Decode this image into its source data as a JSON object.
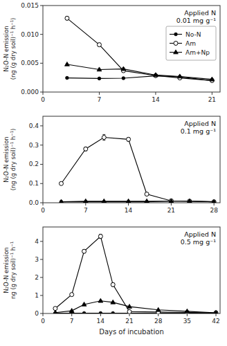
{
  "chart_data": [
    {
      "type": "line",
      "title": "Applied N\n0.01 mg g⁻¹",
      "ylabel": "N₂O-N emission\n(ng (g dry soil)⁻¹ h⁻¹)",
      "xlim": [
        0,
        22
      ],
      "xticks": [
        0,
        7,
        14,
        21
      ],
      "ylim": [
        0.0,
        0.015
      ],
      "yticks": [
        {
          "value": 0.0,
          "label": "0.000"
        },
        {
          "value": 0.005,
          "label": "0.005"
        },
        {
          "value": 0.01,
          "label": "0.010"
        },
        {
          "value": 0.015,
          "label": "0.015"
        }
      ],
      "legend": "upper right",
      "x": [
        3,
        7,
        10,
        14,
        17,
        21
      ],
      "series": [
        {
          "name": "No-N",
          "color": "black",
          "marker": "circle",
          "line_style": "solid",
          "values": [
            0.00245,
            0.00235,
            0.0024,
            0.0028,
            0.00265,
            0.00195
          ],
          "yerr": [
            0.0001,
            0.0001,
            0.0001,
            0.0001,
            0.0001,
            0.0001
          ]
        },
        {
          "name": "Am",
          "color": "black",
          "marker": "open-circle",
          "line_style": "solid",
          "values": [
            0.0128,
            0.0082,
            0.0037,
            0.00285,
            0.00245,
            0.002
          ],
          "yerr": [
            0.0003,
            0.0003,
            0.0002,
            0.0001,
            0.0001,
            0.0001
          ]
        },
        {
          "name": "Am+Np",
          "color": "black",
          "marker": "triangle",
          "line_style": "solid",
          "values": [
            0.0048,
            0.0039,
            0.004,
            0.00295,
            0.0027,
            0.0022
          ],
          "yerr": [
            0.0001,
            0.0001,
            0.0002,
            0.0001,
            0.0001,
            0.0001
          ]
        }
      ]
    },
    {
      "type": "line",
      "title": "Applied N\n0.1 mg g⁻¹",
      "ylabel": "N₂O-N emission\n(ng (g dry soil)⁻¹ h⁻¹)",
      "xlim": [
        0,
        29
      ],
      "xticks": [
        0,
        7,
        14,
        21,
        28
      ],
      "ylim": [
        0.0,
        0.45
      ],
      "yticks": [
        {
          "value": 0.0,
          "label": "0.0"
        },
        {
          "value": 0.1,
          "label": "0.1"
        },
        {
          "value": 0.2,
          "label": "0.2"
        },
        {
          "value": 0.3,
          "label": "0.3"
        },
        {
          "value": 0.4,
          "label": "0.4"
        }
      ],
      "x": [
        3,
        7,
        10,
        14,
        17,
        21,
        24,
        28
      ],
      "series": [
        {
          "color": "black",
          "marker": "circle",
          "line_style": "solid",
          "values": [
            0.005,
            0.005,
            0.005,
            0.005,
            0.005,
            0.008,
            0.008,
            0.005
          ],
          "yerr": [
            0.001,
            0.001,
            0.001,
            0.001,
            0.001,
            0.001,
            0.001,
            0.001
          ]
        },
        {
          "color": "black",
          "marker": "open-circle",
          "line_style": "solid",
          "values": [
            0.1,
            0.28,
            0.34,
            0.33,
            0.045,
            0.01,
            0.008,
            0.005
          ],
          "yerr": [
            0.005,
            0.01,
            0.015,
            0.01,
            0.005,
            0.002,
            0.001,
            0.001
          ]
        },
        {
          "color": "black",
          "marker": "triangle",
          "line_style": "solid",
          "values": [
            0.005,
            0.008,
            0.008,
            0.008,
            0.008,
            0.008,
            0.008,
            0.005
          ],
          "yerr": [
            0.001,
            0.001,
            0.001,
            0.001,
            0.001,
            0.001,
            0.001,
            0.001
          ]
        }
      ]
    },
    {
      "type": "line",
      "title": "Applied N\n0.5 mg g⁻¹",
      "ylabel": "N₂O-N emission\nng (g dry soil)⁻¹ h⁻¹",
      "xlabel": "Days of incubation",
      "xlim": [
        0,
        43
      ],
      "xticks": [
        0,
        7,
        14,
        21,
        28,
        35,
        42
      ],
      "ylim": [
        0,
        4.8
      ],
      "yticks": [
        0,
        1,
        2,
        3,
        4
      ],
      "x": [
        3,
        7,
        10,
        14,
        17,
        21,
        28,
        35,
        42
      ],
      "series": [
        {
          "color": "black",
          "marker": "circle",
          "line_style": "solid",
          "values": [
            0.02,
            0.02,
            0.02,
            0.02,
            0.02,
            0.02,
            0.02,
            0.02,
            0.02
          ],
          "yerr": [
            0.005,
            0.005,
            0.005,
            0.005,
            0.005,
            0.005,
            0.005,
            0.005,
            0.005
          ]
        },
        {
          "color": "black",
          "marker": "open-circle",
          "line_style": "solid",
          "values": [
            0.28,
            1.05,
            3.45,
            4.28,
            1.6,
            0.1,
            0.08,
            0.06,
            0.04
          ],
          "yerr": [
            0.02,
            0.05,
            0.1,
            0.12,
            0.1,
            0.02,
            0.01,
            0.01,
            0.01
          ]
        },
        {
          "color": "black",
          "marker": "triangle",
          "line_style": "solid",
          "values": [
            0.05,
            0.15,
            0.5,
            0.7,
            0.62,
            0.38,
            0.2,
            0.12,
            0.04
          ],
          "yerr": [
            0.01,
            0.02,
            0.03,
            0.03,
            0.03,
            0.02,
            0.01,
            0.01,
            0.01
          ]
        }
      ]
    }
  ]
}
